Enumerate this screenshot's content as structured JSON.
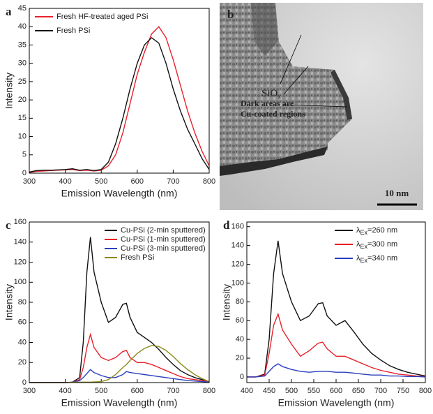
{
  "chart_data": [
    {
      "type": "line",
      "panel_label": "a",
      "x_label": "Emission Wavelength (nm)",
      "y_label": "Intensity",
      "xlim": [
        300,
        800
      ],
      "xticks": [
        300,
        400,
        500,
        600,
        700,
        800
      ],
      "ylim": [
        0,
        45
      ],
      "yticks": [
        0,
        5,
        10,
        15,
        20,
        25,
        30,
        35,
        40,
        45
      ],
      "legend": "upper left",
      "x": [
        300,
        320,
        340,
        360,
        380,
        400,
        420,
        440,
        460,
        480,
        500,
        520,
        540,
        560,
        580,
        600,
        620,
        640,
        660,
        680,
        700,
        720,
        740,
        760,
        780,
        800
      ],
      "series": [
        {
          "name": "Fresh HF-treated aged PSi",
          "color": "#e8202a",
          "values": [
            0.2,
            0.5,
            0.6,
            0.7,
            0.8,
            0.9,
            1.0,
            0.7,
            0.8,
            0.6,
            0.8,
            2,
            5,
            11,
            19,
            27,
            33,
            38,
            40,
            37,
            31,
            24,
            17,
            11,
            6,
            2
          ]
        },
        {
          "name": "Fresh PSi",
          "color": "#111111",
          "values": [
            0.3,
            0.7,
            0.8,
            0.8,
            0.9,
            1.0,
            1.2,
            0.8,
            1.0,
            0.7,
            1.0,
            3,
            8,
            15,
            23,
            30,
            35,
            37,
            35.5,
            30,
            23,
            17,
            12,
            8,
            4,
            1
          ]
        }
      ]
    },
    {
      "type": "line",
      "panel_label": "c",
      "x_label": "Emission Wavelength (nm)",
      "y_label": "Intensity",
      "xlim": [
        300,
        800
      ],
      "xticks": [
        300,
        400,
        500,
        600,
        700,
        800
      ],
      "ylim": [
        0,
        160
      ],
      "yticks": [
        0,
        20,
        40,
        60,
        80,
        100,
        120,
        140,
        160
      ],
      "legend": "upper right",
      "x": [
        300,
        320,
        340,
        360,
        380,
        400,
        420,
        440,
        450,
        460,
        470,
        480,
        500,
        520,
        540,
        560,
        570,
        580,
        600,
        620,
        640,
        660,
        680,
        700,
        720,
        740,
        760,
        780,
        800
      ],
      "series": [
        {
          "name": "Cu-PSi (2-min sputtered)",
          "color": "#111111",
          "values": [
            0,
            0,
            0,
            0,
            0,
            0,
            0.5,
            5,
            40,
            110,
            145,
            110,
            80,
            60,
            65,
            78,
            79,
            65,
            50,
            45,
            40,
            33,
            25,
            18,
            12,
            8,
            5,
            3,
            1
          ]
        },
        {
          "name": "Cu-PSi (1-min sputtered)",
          "color": "#e8202a",
          "values": [
            0,
            0,
            0,
            0,
            0,
            0,
            0.3,
            3,
            15,
            35,
            48,
            35,
            25,
            22,
            25,
            31,
            32,
            25,
            20,
            20,
            18,
            15,
            12,
            9,
            6,
            4,
            3,
            2,
            1
          ]
        },
        {
          "name": "Cu-PSi (3-min sputtered)",
          "color": "#2b3fbf",
          "values": [
            0,
            0,
            0,
            0,
            0,
            0,
            0.2,
            2,
            5,
            9,
            13,
            10,
            7,
            5,
            5,
            8,
            11,
            10,
            9,
            8,
            7,
            6,
            5,
            4,
            3,
            2,
            1.5,
            1,
            0.5
          ]
        },
        {
          "name": "Fresh PSi",
          "color": "#8a8a1a",
          "values": [
            0,
            0,
            0,
            0,
            0,
            0,
            0.3,
            0.5,
            0.5,
            0.5,
            0.5,
            0.6,
            1,
            3,
            8,
            15,
            18,
            22,
            29,
            34,
            37,
            36,
            32,
            26,
            19,
            13,
            8,
            4,
            1
          ]
        }
      ]
    },
    {
      "type": "line",
      "panel_label": "d",
      "x_label": "Emission Wavelength (nm)",
      "y_label": "Intensity",
      "xlim": [
        400,
        800
      ],
      "xticks": [
        400,
        450,
        500,
        550,
        600,
        650,
        700,
        750,
        800
      ],
      "ylim": [
        -6,
        165
      ],
      "yticks": [
        0,
        20,
        40,
        60,
        80,
        100,
        120,
        140,
        160
      ],
      "legend": "upper right",
      "x": [
        400,
        420,
        440,
        450,
        460,
        470,
        480,
        500,
        520,
        540,
        560,
        570,
        580,
        600,
        620,
        640,
        660,
        680,
        700,
        720,
        740,
        760,
        780,
        800
      ],
      "series": [
        {
          "name": "λEx=260 nm",
          "color": "#111111",
          "values": [
            0,
            0,
            3,
            40,
            110,
            145,
            110,
            80,
            60,
            65,
            78,
            79,
            65,
            55,
            60,
            48,
            35,
            25,
            18,
            12,
            8,
            5,
            3,
            1
          ]
        },
        {
          "name": "λEx=300 nm",
          "color": "#e8202a",
          "values": [
            0,
            0,
            2,
            25,
            55,
            67,
            50,
            35,
            22,
            28,
            36,
            37,
            30,
            22,
            22,
            18,
            14,
            10,
            7,
            5,
            3,
            2,
            1,
            0.5
          ]
        },
        {
          "name": "λEx=340 nm",
          "color": "#2b3fbf",
          "values": [
            0,
            0,
            1,
            6,
            11,
            14,
            11,
            8,
            6,
            5,
            6,
            6,
            6,
            5,
            5,
            4,
            3,
            2,
            2,
            1,
            1,
            0.5,
            0.5,
            0
          ]
        }
      ]
    }
  ],
  "image_panel": {
    "label": "b",
    "oxide_label": "SiO",
    "oxide_subscript": "x",
    "annotation_lines": [
      "Dark areas are",
      "Cu-coated regions"
    ],
    "scale_bar": "10 nm"
  }
}
